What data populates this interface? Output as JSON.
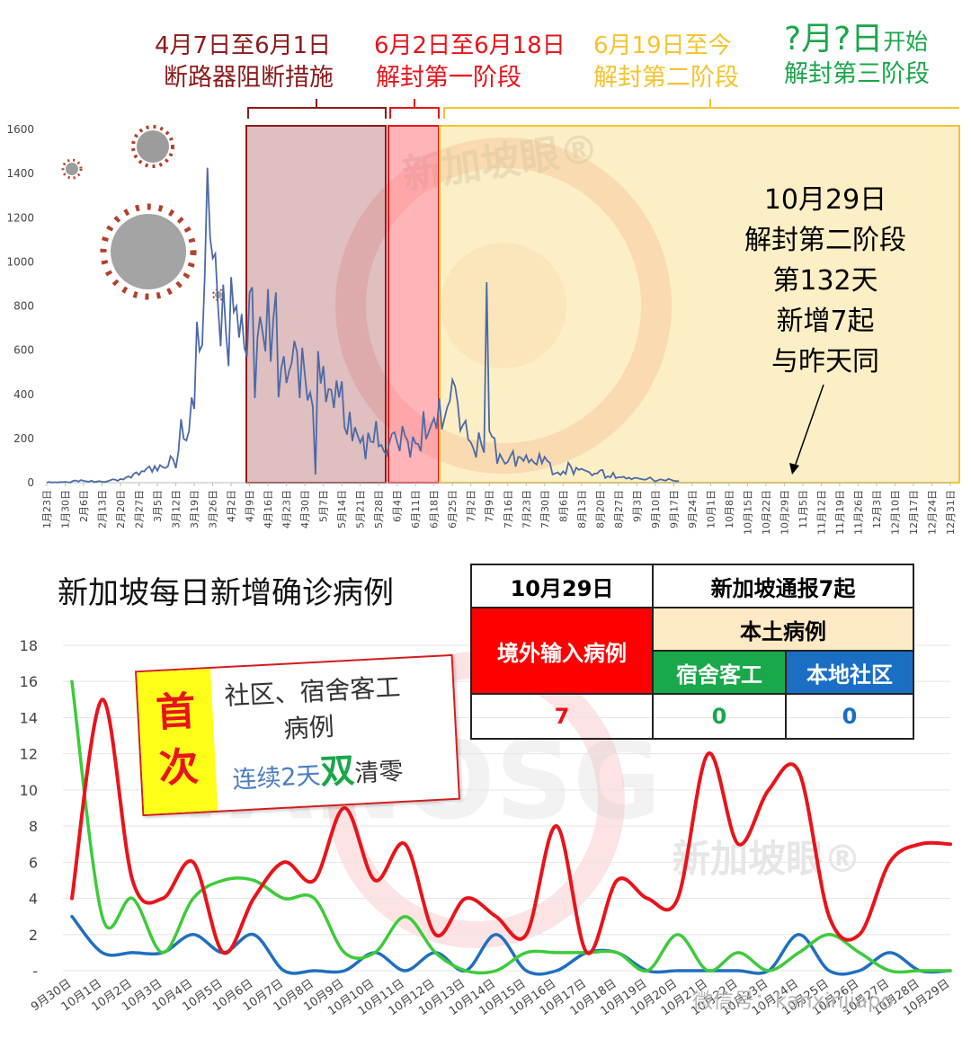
{
  "colors": {
    "red": "#e8141b",
    "green": "#3dcb3a",
    "blue": "#1f6fbf",
    "line": "#4c6aa8",
    "maroon": "#8b1a1a",
    "yellow_band": "#f4c430"
  },
  "phases": [
    {
      "date": "4月7日至6月1日",
      "name": "断路器阻断措施",
      "color": "#8b1a1a"
    },
    {
      "date": "6月2日至6月18日",
      "name": "解封第一阶段",
      "color": "#e8141b"
    },
    {
      "date": "6月19日至今",
      "name": "解封第二阶段",
      "color": "#f4c430"
    },
    {
      "date": "?月?日",
      "date_suffix": "开始",
      "name": "解封第三阶段",
      "color": "#1aa64a"
    }
  ],
  "annotation": [
    "10月29日",
    "解封第二阶段",
    "第132天",
    "新增7起",
    "与昨天同"
  ],
  "watermarks": {
    "brand": "新加坡眼®",
    "brand2": "新加坡眼®",
    "latin": "YANOSG",
    "wechat": "微信号：kanxinjiapo"
  },
  "main_title": "新加坡每日新增确诊病例",
  "callout": {
    "badge_line1": "首",
    "badge_line2": "次",
    "line1": "社区、宿舍客工",
    "line2": "病例",
    "line3a": "连续2天",
    "line3b": "双",
    "line3c": "清零"
  },
  "table": {
    "date": "10月29日",
    "total": "新加坡通报7起",
    "imported_label": "境外输入病例",
    "local_label": "本土病例",
    "dorm_label": "宿舍客工",
    "community_label": "本地社区",
    "imported_value": "7",
    "dorm_value": "0",
    "community_value": "0"
  },
  "chart_data": [
    {
      "type": "line",
      "title": "",
      "ylim": [
        0,
        1600
      ],
      "yticks": [
        0,
        200,
        400,
        600,
        800,
        1000,
        1200,
        1400,
        1600
      ],
      "x_ticks": [
        "1月23日",
        "1月30日",
        "2月6日",
        "2月13日",
        "2月20日",
        "2月27日",
        "3月5日",
        "3月12日",
        "3月19日",
        "3月26日",
        "4月2日",
        "4月9日",
        "4月16日",
        "4月23日",
        "4月30日",
        "5月7日",
        "5月14日",
        "5月21日",
        "5月28日",
        "6月4日",
        "6月11日",
        "6月18日",
        "6月25日",
        "7月2日",
        "7月9日",
        "7月16日",
        "7月23日",
        "7月30日",
        "8月6日",
        "8月13日",
        "8月20日",
        "8月27日",
        "9月3日",
        "9月10日",
        "9月17日",
        "9月24日",
        "10月1日",
        "10月8日",
        "10月15日",
        "10月22日",
        "10月29日",
        "11月5日",
        "11月12日",
        "11月19日",
        "11月26日",
        "12月3日",
        "12月10日",
        "12月17日",
        "12月24日",
        "12月31日"
      ],
      "series": [
        {
          "values": [
            1,
            3,
            1,
            2,
            1,
            3,
            2,
            4,
            2,
            1,
            8,
            10,
            5,
            12,
            8,
            6,
            4,
            9,
            3,
            5,
            7,
            4,
            3,
            6,
            10,
            15,
            13,
            8,
            17,
            14,
            23,
            29,
            22,
            40,
            47,
            35,
            52,
            51,
            65,
            73,
            49,
            75,
            54,
            80,
            70,
            66,
            74,
            120,
            106,
            66,
            142,
            287,
            198,
            191,
            233,
            386,
            334,
            728,
            596,
            623,
            942,
            1426,
            1111,
            1016,
            1037,
            799,
            618,
            897,
            690,
            528,
            931,
            773,
            799,
            657,
            764,
            611,
            573,
            862,
            885,
            383,
            657,
            752,
            675,
            595,
            877,
            548,
            741,
            862,
            387,
            518,
            572,
            451,
            506,
            544,
            642,
            591,
            383,
            611,
            489,
            373,
            408,
            344,
            37,
            596,
            449,
            528,
            365,
            424,
            421,
            338,
            463,
            386,
            459,
            252,
            218,
            321,
            188,
            251,
            214,
            181,
            208,
            106,
            226,
            186,
            183,
            279,
            164,
            171,
            143,
            124,
            179,
            221,
            228,
            185,
            143,
            256,
            212,
            191,
            114,
            208,
            178,
            175,
            142,
            323,
            197,
            230,
            263,
            291,
            244,
            382,
            241,
            291,
            341,
            369,
            466,
            437,
            360,
            236,
            261,
            280,
            195,
            182,
            153,
            114,
            227,
            172,
            136,
            908,
            235,
            208,
            201,
            86,
            129,
            106,
            85,
            94,
            120,
            143,
            73,
            117,
            113,
            98,
            124,
            92,
            106,
            90,
            82,
            130,
            88,
            117,
            99,
            90,
            37,
            42,
            46,
            35,
            51,
            39,
            90,
            72,
            38,
            68,
            58,
            63,
            57,
            52,
            47,
            33,
            41,
            42,
            55,
            58,
            21,
            29,
            24,
            45,
            20,
            25,
            24,
            27,
            18,
            23,
            15,
            21,
            21,
            18,
            16,
            13,
            17,
            24,
            14,
            5,
            11,
            15,
            12,
            9,
            17,
            13,
            8,
            7,
            7
          ]
        }
      ]
    },
    {
      "type": "line",
      "title": "新加坡每日新增确诊病例",
      "ylim": [
        0,
        18
      ],
      "yticks": [
        0,
        2,
        4,
        6,
        8,
        10,
        12,
        14,
        16,
        18
      ],
      "categories": [
        "9月30日",
        "10月1日",
        "10月2日",
        "10月3日",
        "10月4日",
        "10月5日",
        "10月6日",
        "10月7日",
        "10月8日",
        "10月9日",
        "10月10日",
        "10月11日",
        "10月12日",
        "10月13日",
        "10月14日",
        "10月15日",
        "10月16日",
        "10月17日",
        "10月18日",
        "10月19日",
        "10月20日",
        "10月21日",
        "10月22日",
        "10月23日",
        "10月24日",
        "10月25日",
        "10月26日",
        "10月27日",
        "10月28日",
        "10月29日"
      ],
      "series": [
        {
          "values": [
            4,
            15,
            5,
            4,
            6,
            1,
            4,
            6,
            5,
            9,
            5,
            7,
            2,
            4,
            3,
            2,
            8,
            1,
            5,
            4,
            4,
            12,
            7,
            10,
            11,
            3,
            2,
            6,
            7,
            7
          ]
        },
        {
          "values": [
            16,
            3,
            4,
            1,
            4,
            5,
            5,
            4,
            4,
            1,
            1,
            3,
            1,
            0,
            0,
            1,
            1,
            1,
            1,
            0,
            2,
            0,
            1,
            0,
            1,
            2,
            1,
            0,
            0,
            0
          ]
        },
        {
          "values": [
            3,
            1,
            1,
            1,
            2,
            1,
            2,
            0,
            0,
            0,
            1,
            0,
            1,
            0,
            2,
            0,
            0,
            1,
            1,
            0,
            0,
            0,
            0,
            0,
            2,
            0,
            0,
            1,
            0,
            0
          ]
        }
      ]
    }
  ]
}
